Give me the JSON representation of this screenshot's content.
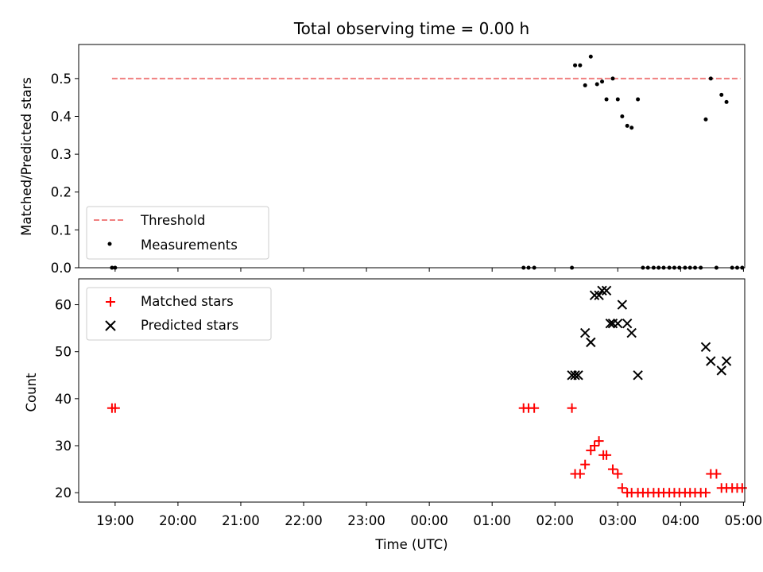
{
  "chart_data": {
    "title": "Total observing time = 0.00 h",
    "xlabel": "Time (UTC)",
    "x_units": "hours since 18:00 UTC",
    "xlim": [
      0.42,
      11.02
    ],
    "xticks": [
      {
        "value": 1,
        "label": "19:00"
      },
      {
        "value": 2,
        "label": "20:00"
      },
      {
        "value": 3,
        "label": "21:00"
      },
      {
        "value": 4,
        "label": "22:00"
      },
      {
        "value": 5,
        "label": "23:00"
      },
      {
        "value": 6,
        "label": "00:00"
      },
      {
        "value": 7,
        "label": "01:00"
      },
      {
        "value": 8,
        "label": "02:00"
      },
      {
        "value": 9,
        "label": "03:00"
      },
      {
        "value": 10,
        "label": "04:00"
      },
      {
        "value": 11,
        "label": "05:00"
      }
    ],
    "top": {
      "type": "scatter",
      "ylabel": "Matched/Predicted stars",
      "ylim": [
        0,
        0.59
      ],
      "yticks": [
        0.0,
        0.1,
        0.2,
        0.3,
        0.4,
        0.5
      ],
      "ytick_labels": [
        "0.0",
        "0.1",
        "0.2",
        "0.3",
        "0.4",
        "0.5"
      ],
      "legend": {
        "placement": "lower-left",
        "threshold_label": "Threshold",
        "measurements_label": "Measurements"
      },
      "threshold": {
        "value": 0.5,
        "x_start": 0.95,
        "x_end": 10.95,
        "color": "#f08080"
      },
      "measurements": {
        "color": "#000000",
        "x": [
          0.95,
          1.0,
          7.5,
          7.58,
          7.67,
          8.27,
          8.32,
          8.4,
          8.48,
          8.57,
          8.67,
          8.75,
          8.82,
          8.92,
          9.0,
          9.07,
          9.15,
          9.22,
          9.32,
          9.4,
          9.48,
          9.57,
          9.65,
          9.73,
          9.82,
          9.9,
          9.98,
          10.07,
          10.15,
          10.23,
          10.32,
          10.4,
          10.48,
          10.57,
          10.65,
          10.73,
          10.82,
          10.9,
          10.98
        ],
        "y": [
          0,
          0,
          0,
          0,
          0,
          0,
          0.535,
          0.535,
          0.482,
          0.558,
          0.485,
          0.492,
          0.445,
          0.5,
          0.445,
          0.4,
          0.375,
          0.37,
          0.445,
          0,
          0,
          0,
          0,
          0,
          0,
          0,
          0,
          0,
          0,
          0,
          0,
          0.392,
          0.5,
          0,
          0.457,
          0.438,
          0,
          0,
          0
        ]
      }
    },
    "bottom": {
      "type": "scatter",
      "ylabel": "Count",
      "ylim": [
        18.0,
        65.5
      ],
      "yticks": [
        20,
        30,
        40,
        50,
        60
      ],
      "ytick_labels": [
        "20",
        "30",
        "40",
        "50",
        "60"
      ],
      "legend": {
        "placement": "top-left",
        "matched_label": "Matched stars",
        "predicted_label": "Predicted stars"
      },
      "matched": {
        "color": "#ff0000",
        "x": [
          0.95,
          1.0,
          7.5,
          7.58,
          7.67,
          8.27,
          8.32,
          8.4,
          8.48,
          8.57,
          8.63,
          8.7,
          8.77,
          8.82,
          8.92,
          9.0,
          9.07,
          9.15,
          9.22,
          9.32,
          9.4,
          9.48,
          9.57,
          9.65,
          9.73,
          9.82,
          9.9,
          9.98,
          10.07,
          10.15,
          10.23,
          10.32,
          10.4,
          10.48,
          10.57,
          10.65,
          10.73,
          10.82,
          10.9,
          10.98
        ],
        "y": [
          38,
          38,
          38,
          38,
          38,
          38,
          24,
          24,
          26,
          29,
          30,
          31,
          28,
          28,
          25,
          24,
          21,
          20,
          20,
          20,
          20,
          20,
          20,
          20,
          20,
          20,
          20,
          20,
          20,
          20,
          20,
          20,
          20,
          24,
          24,
          21,
          21,
          21,
          21,
          21
        ]
      },
      "predicted": {
        "color": "#000000",
        "x": [
          8.27,
          8.32,
          8.37,
          8.48,
          8.57,
          8.63,
          8.7,
          8.75,
          8.82,
          8.88,
          8.92,
          9.0,
          9.07,
          9.15,
          9.22,
          9.32,
          10.4,
          10.48,
          10.65,
          10.73
        ],
        "y": [
          45,
          45,
          45,
          54,
          52,
          62,
          62,
          63,
          63,
          56,
          56,
          56,
          60,
          56,
          54,
          45,
          51,
          48,
          46,
          48
        ]
      }
    }
  }
}
